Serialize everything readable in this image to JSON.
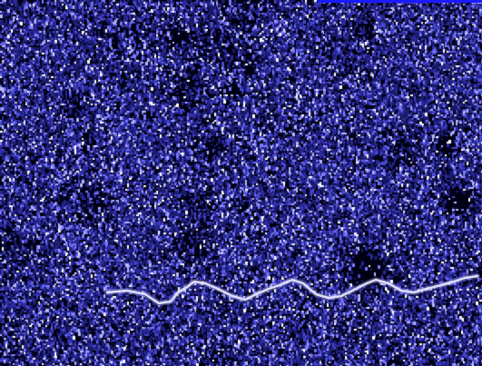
{
  "display": {
    "background_color": "#000014",
    "noise_colors": [
      "#1b1b6e",
      "#2a2aa0",
      "#4a4ad0",
      "#7a7aff",
      "#b8b8ff",
      "#ffffff"
    ],
    "trace_color": "#ffffff",
    "accent_bar_color": "#1a1aff"
  },
  "accent_bar": {
    "visible": true
  }
}
